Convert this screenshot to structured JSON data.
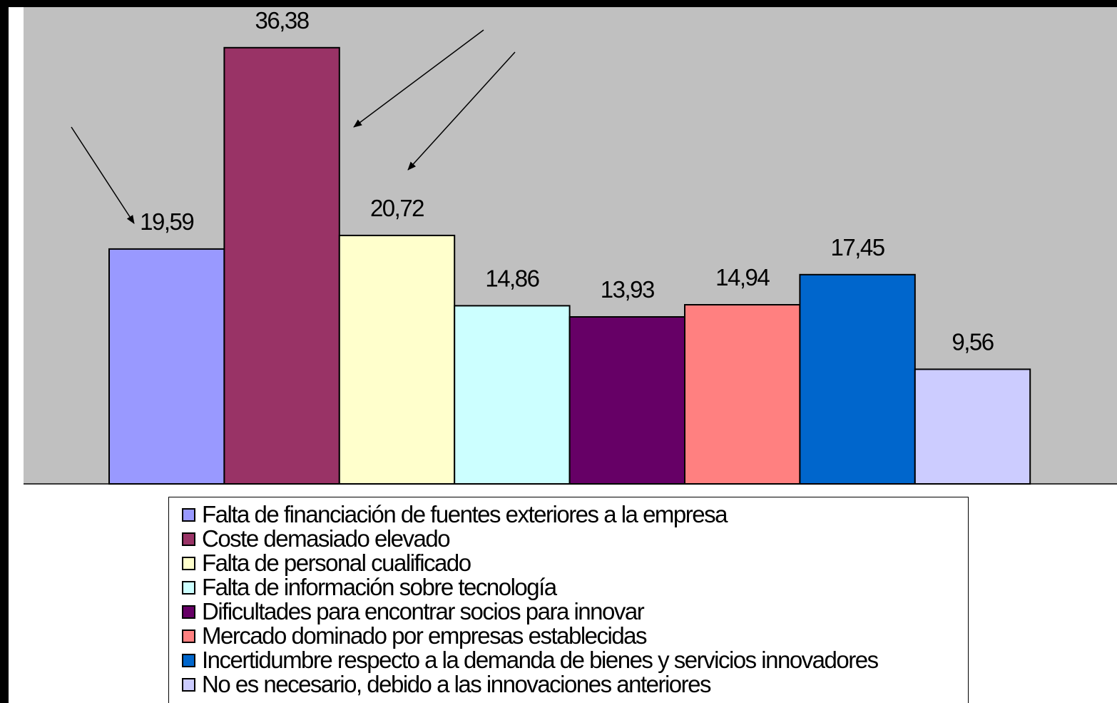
{
  "chart_data": {
    "type": "bar",
    "categories": [
      "Falta de financiación de fuentes exteriores a la empresa",
      "Coste demasiado elevado",
      "Falta de personal cualificado",
      "Falta de información sobre tecnología",
      "Dificultades para encontrar socios para innovar",
      "Mercado dominado por empresas establecidas",
      "Incertidumbre respecto a la demanda de bienes y servicios innovadores",
      "No es necesario, debido a las innovaciones anteriores"
    ],
    "values": [
      19.59,
      36.38,
      20.72,
      14.86,
      13.93,
      14.94,
      17.45,
      9.56
    ],
    "value_labels": [
      "19,59",
      "36,38",
      "20,72",
      "14,86",
      "13,93",
      "14,94",
      "17,45",
      "9,56"
    ],
    "colors": [
      "#9999ff",
      "#993366",
      "#ffffcc",
      "#ccffff",
      "#660066",
      "#ff8080",
      "#0066cc",
      "#ccccff"
    ],
    "ylim": [
      0,
      40
    ],
    "grid": false,
    "legend_position": "bottom",
    "plot_background": "#c0c0c0",
    "annotations": [
      "arrow pointing to 19,59",
      "arrow pointing to 36,38",
      "arrow pointing to 20,72"
    ]
  }
}
